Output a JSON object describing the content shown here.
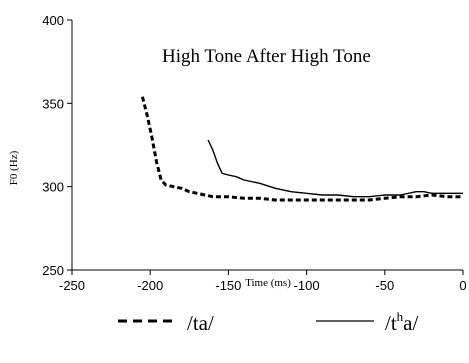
{
  "chart_data": {
    "type": "line",
    "title": "High Tone After High Tone",
    "xlabel": "Time (ms)",
    "ylabel": "F0 (Hz)",
    "xlim": [
      -250,
      0
    ],
    "ylim": [
      250,
      400
    ],
    "xticks": [
      -250,
      -200,
      -150,
      -100,
      -50,
      0
    ],
    "yticks": [
      250,
      300,
      350,
      400
    ],
    "grid": false,
    "legend_position": "bottom",
    "series": [
      {
        "name": "/ta/",
        "style": "dashed",
        "color": "#000000",
        "x": [
          -205,
          -202,
          -199,
          -196,
          -193,
          -190,
          -185,
          -180,
          -175,
          -170,
          -165,
          -160,
          -150,
          -140,
          -130,
          -120,
          -110,
          -100,
          -90,
          -80,
          -70,
          -60,
          -50,
          -40,
          -30,
          -20,
          -10,
          0
        ],
        "y": [
          354,
          343,
          330,
          315,
          304,
          301,
          300,
          299,
          297,
          296,
          295,
          294,
          294,
          293,
          293,
          292,
          292,
          292,
          292,
          292,
          292,
          292,
          293,
          294,
          294,
          295,
          294,
          294
        ]
      },
      {
        "name": "/tʰa/",
        "style": "solid",
        "color": "#000000",
        "x": [
          -163,
          -160,
          -157,
          -154,
          -150,
          -145,
          -140,
          -130,
          -120,
          -110,
          -100,
          -90,
          -80,
          -70,
          -60,
          -50,
          -40,
          -30,
          -25,
          -20,
          -10,
          0
        ],
        "y": [
          328,
          322,
          314,
          308,
          307,
          306,
          304,
          302,
          299,
          297,
          296,
          295,
          295,
          294,
          294,
          295,
          295,
          297,
          297,
          296,
          296,
          296
        ]
      }
    ],
    "legend": [
      {
        "label_base": "/t",
        "label_sup": "h",
        "label_rest": "a/",
        "series": 1
      },
      {
        "label_base": "/ta/",
        "label_sup": "",
        "label_rest": "",
        "series": 0
      }
    ]
  }
}
